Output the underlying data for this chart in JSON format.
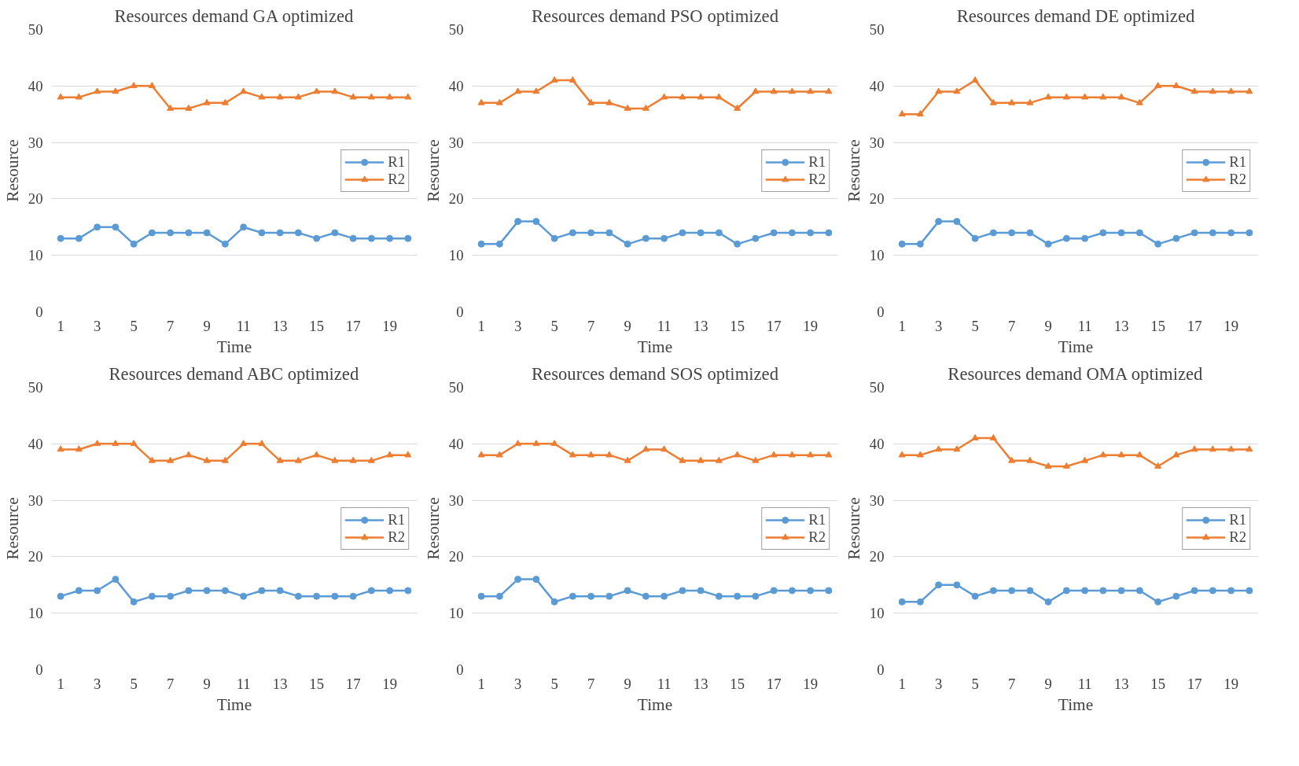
{
  "chart_data": [
    {
      "type": "line",
      "title": "Resources demand GA optimized",
      "xlabel": "Time",
      "ylabel": "Resource",
      "x": [
        1,
        2,
        3,
        4,
        5,
        6,
        7,
        8,
        9,
        10,
        11,
        12,
        13,
        14,
        15,
        16,
        17,
        18,
        19,
        20
      ],
      "xlim": [
        0.5,
        20.5
      ],
      "xticks": [
        1,
        3,
        5,
        7,
        9,
        11,
        13,
        15,
        17,
        19
      ],
      "ylim": [
        0,
        50
      ],
      "yticks": [
        0,
        10,
        20,
        30,
        40,
        50
      ],
      "grid": "y",
      "legend": "right",
      "series": [
        {
          "name": "R1",
          "color": "#5b9bd5",
          "marker": "circle",
          "values": [
            13,
            13,
            15,
            15,
            12,
            14,
            14,
            14,
            14,
            12,
            15,
            14,
            14,
            14,
            13,
            14,
            13,
            13,
            13,
            13
          ]
        },
        {
          "name": "R2",
          "color": "#ed7d31",
          "marker": "triangle",
          "values": [
            38,
            38,
            39,
            39,
            40,
            40,
            36,
            36,
            37,
            37,
            39,
            38,
            38,
            38,
            39,
            39,
            38,
            38,
            38,
            38
          ]
        }
      ]
    },
    {
      "type": "line",
      "title": "Resources demand PSO optimized",
      "xlabel": "Time",
      "ylabel": "Resource",
      "x": [
        1,
        2,
        3,
        4,
        5,
        6,
        7,
        8,
        9,
        10,
        11,
        12,
        13,
        14,
        15,
        16,
        17,
        18,
        19,
        20
      ],
      "xlim": [
        0.5,
        20.5
      ],
      "xticks": [
        1,
        3,
        5,
        7,
        9,
        11,
        13,
        15,
        17,
        19
      ],
      "ylim": [
        0,
        50
      ],
      "yticks": [
        0,
        10,
        20,
        30,
        40,
        50
      ],
      "grid": "y",
      "legend": "right",
      "series": [
        {
          "name": "R1",
          "color": "#5b9bd5",
          "marker": "circle",
          "values": [
            12,
            12,
            16,
            16,
            13,
            14,
            14,
            14,
            12,
            13,
            13,
            14,
            14,
            14,
            12,
            13,
            14,
            14,
            14,
            14
          ]
        },
        {
          "name": "R2",
          "color": "#ed7d31",
          "marker": "triangle",
          "values": [
            37,
            37,
            39,
            39,
            41,
            41,
            37,
            37,
            36,
            36,
            38,
            38,
            38,
            38,
            36,
            39,
            39,
            39,
            39,
            39
          ]
        }
      ]
    },
    {
      "type": "line",
      "title": "Resources demand DE optimized",
      "xlabel": "Time",
      "ylabel": "Resource",
      "x": [
        1,
        2,
        3,
        4,
        5,
        6,
        7,
        8,
        9,
        10,
        11,
        12,
        13,
        14,
        15,
        16,
        17,
        18,
        19,
        20
      ],
      "xlim": [
        0.5,
        20.5
      ],
      "xticks": [
        1,
        3,
        5,
        7,
        9,
        11,
        13,
        15,
        17,
        19
      ],
      "ylim": [
        0,
        50
      ],
      "yticks": [
        0,
        10,
        20,
        30,
        40,
        50
      ],
      "grid": "y",
      "legend": "right",
      "series": [
        {
          "name": "R1",
          "color": "#5b9bd5",
          "marker": "circle",
          "values": [
            12,
            12,
            16,
            16,
            13,
            14,
            14,
            14,
            12,
            13,
            13,
            14,
            14,
            14,
            12,
            13,
            14,
            14,
            14,
            14
          ]
        },
        {
          "name": "R2",
          "color": "#ed7d31",
          "marker": "triangle",
          "values": [
            35,
            35,
            39,
            39,
            41,
            37,
            37,
            37,
            38,
            38,
            38,
            38,
            38,
            37,
            40,
            40,
            39,
            39,
            39,
            39
          ]
        }
      ]
    },
    {
      "type": "line",
      "title": "Resources demand ABC optimized",
      "xlabel": "Time",
      "ylabel": "Resource",
      "x": [
        1,
        2,
        3,
        4,
        5,
        6,
        7,
        8,
        9,
        10,
        11,
        12,
        13,
        14,
        15,
        16,
        17,
        18,
        19,
        20
      ],
      "xlim": [
        0.5,
        20.5
      ],
      "xticks": [
        1,
        3,
        5,
        7,
        9,
        11,
        13,
        15,
        17,
        19
      ],
      "ylim": [
        0,
        50
      ],
      "yticks": [
        0,
        10,
        20,
        30,
        40,
        50
      ],
      "grid": "y",
      "legend": "right",
      "series": [
        {
          "name": "R1",
          "color": "#5b9bd5",
          "marker": "circle",
          "values": [
            13,
            14,
            14,
            16,
            12,
            13,
            13,
            14,
            14,
            14,
            13,
            14,
            14,
            13,
            13,
            13,
            13,
            14,
            14,
            14
          ]
        },
        {
          "name": "R2",
          "color": "#ed7d31",
          "marker": "triangle",
          "values": [
            39,
            39,
            40,
            40,
            40,
            37,
            37,
            38,
            37,
            37,
            40,
            40,
            37,
            37,
            38,
            37,
            37,
            37,
            38,
            38
          ]
        }
      ]
    },
    {
      "type": "line",
      "title": "Resources demand SOS optimized",
      "xlabel": "Time",
      "ylabel": "Resource",
      "x": [
        1,
        2,
        3,
        4,
        5,
        6,
        7,
        8,
        9,
        10,
        11,
        12,
        13,
        14,
        15,
        16,
        17,
        18,
        19,
        20
      ],
      "xlim": [
        0.5,
        20.5
      ],
      "xticks": [
        1,
        3,
        5,
        7,
        9,
        11,
        13,
        15,
        17,
        19
      ],
      "ylim": [
        0,
        50
      ],
      "yticks": [
        0,
        10,
        20,
        30,
        40,
        50
      ],
      "grid": "y",
      "legend": "right",
      "series": [
        {
          "name": "R1",
          "color": "#5b9bd5",
          "marker": "circle",
          "values": [
            13,
            13,
            16,
            16,
            12,
            13,
            13,
            13,
            14,
            13,
            13,
            14,
            14,
            13,
            13,
            13,
            14,
            14,
            14,
            14
          ]
        },
        {
          "name": "R2",
          "color": "#ed7d31",
          "marker": "triangle",
          "values": [
            38,
            38,
            40,
            40,
            40,
            38,
            38,
            38,
            37,
            39,
            39,
            37,
            37,
            37,
            38,
            37,
            38,
            38,
            38,
            38
          ]
        }
      ]
    },
    {
      "type": "line",
      "title": "Resources demand OMA optimized",
      "xlabel": "Time",
      "ylabel": "Resource",
      "x": [
        1,
        2,
        3,
        4,
        5,
        6,
        7,
        8,
        9,
        10,
        11,
        12,
        13,
        14,
        15,
        16,
        17,
        18,
        19,
        20
      ],
      "xlim": [
        0.5,
        20.5
      ],
      "xticks": [
        1,
        3,
        5,
        7,
        9,
        11,
        13,
        15,
        17,
        19
      ],
      "ylim": [
        0,
        50
      ],
      "yticks": [
        0,
        10,
        20,
        30,
        40,
        50
      ],
      "grid": "y",
      "legend": "right",
      "series": [
        {
          "name": "R1",
          "color": "#5b9bd5",
          "marker": "circle",
          "values": [
            12,
            12,
            15,
            15,
            13,
            14,
            14,
            14,
            12,
            14,
            14,
            14,
            14,
            14,
            12,
            13,
            14,
            14,
            14,
            14
          ]
        },
        {
          "name": "R2",
          "color": "#ed7d31",
          "marker": "triangle",
          "values": [
            38,
            38,
            39,
            39,
            41,
            41,
            37,
            37,
            36,
            36,
            37,
            38,
            38,
            38,
            36,
            38,
            39,
            39,
            39,
            39
          ]
        }
      ]
    }
  ]
}
